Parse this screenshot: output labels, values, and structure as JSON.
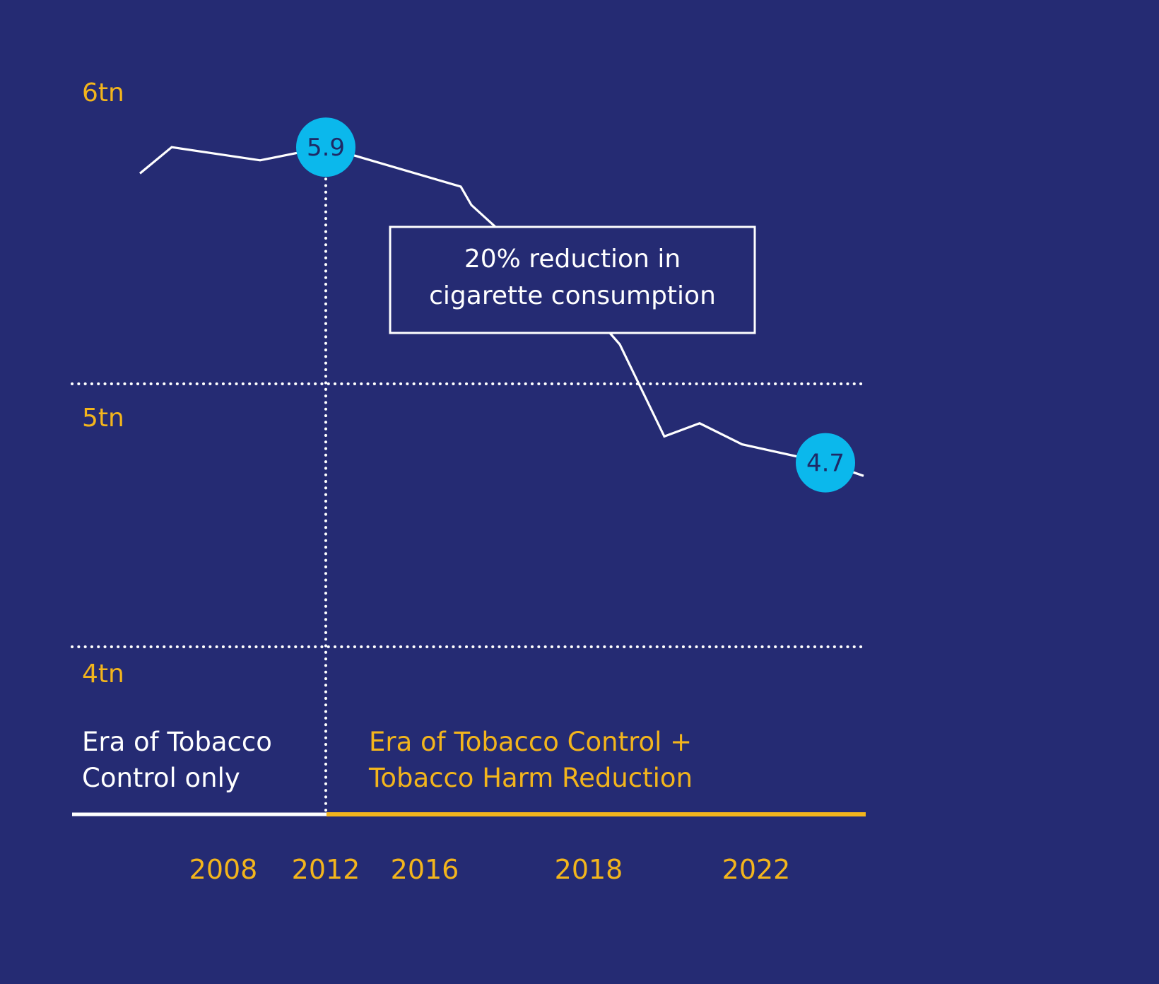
{
  "colors": {
    "background": "#252b73",
    "accent_yellow": "#f3b51c",
    "line": "#ffffff",
    "bubble": "#0bb8ec",
    "bubble_text": "#1e2a66"
  },
  "chart_data": {
    "type": "line",
    "title": "",
    "xlabel": "",
    "ylabel": "",
    "y_unit": "tn",
    "ylim": [
      4,
      6
    ],
    "y_ticks": [
      {
        "value": 6,
        "label": "6tn"
      },
      {
        "value": 5,
        "label": "5tn"
      },
      {
        "value": 4,
        "label": "4tn"
      }
    ],
    "grid": "dotted horizontal at 5tn and 4tn",
    "x_tick_labels": [
      {
        "x": 2008,
        "label": "2008"
      },
      {
        "x": 2012,
        "label": "2012"
      },
      {
        "x": 2016,
        "label": "2016"
      },
      {
        "x": 2018,
        "label": "2018"
      },
      {
        "x": 2022,
        "label": "2022"
      }
    ],
    "series": [
      {
        "values": [
          {
            "x": 2006.8,
            "y": 5.8
          },
          {
            "x": 2008.0,
            "y": 5.9
          },
          {
            "x": 2011.2,
            "y": 5.85
          },
          {
            "x": 2012.0,
            "y": 5.9
          },
          {
            "x": 2015.5,
            "y": 5.75
          },
          {
            "x": 2015.8,
            "y": 5.68
          },
          {
            "x": 2018.0,
            "y": 5.23
          },
          {
            "x": 2018.4,
            "y": 5.15
          },
          {
            "x": 2019.9,
            "y": 4.8
          },
          {
            "x": 2020.8,
            "y": 4.85
          },
          {
            "x": 2021.5,
            "y": 4.77
          },
          {
            "x": 2022.6,
            "y": 4.7
          },
          {
            "x": 2023.1,
            "y": 4.65
          }
        ]
      }
    ],
    "point_labels": [
      {
        "x": 2012.0,
        "y": 5.9,
        "label": "5.9"
      },
      {
        "x": 2022.6,
        "y": 4.7,
        "label": "4.7"
      }
    ],
    "divider": {
      "x": 2012
    },
    "annotation": {
      "lines": [
        "20% reduction in",
        "cigarette consumption"
      ]
    },
    "eras": [
      {
        "lines": [
          "Era of Tobacco",
          "Control only"
        ],
        "color": "#ffffff"
      },
      {
        "lines": [
          "Era of Tobacco Control +",
          "Tobacco Harm Reduction"
        ],
        "color": "#f3b51c"
      }
    ]
  }
}
